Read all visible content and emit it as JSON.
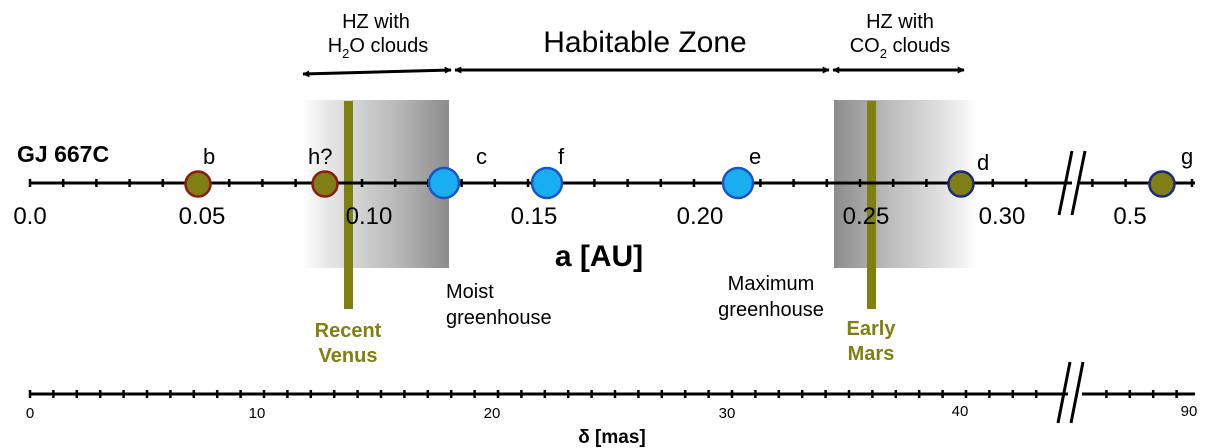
{
  "star_label": "GJ 667C",
  "zones": {
    "hz_h2o": {
      "line1": "HZ with",
      "line2_main": "H",
      "line2_sub": "2",
      "line2_rest": "O clouds"
    },
    "habitable": {
      "label": "Habitable Zone"
    },
    "hz_co2": {
      "line1": "HZ with",
      "line2_main": "CO",
      "line2_sub": "2",
      "line2_rest": " clouds"
    }
  },
  "au_axis": {
    "label": "a [AU]",
    "ticks": [
      "0.0",
      "0.05",
      "0.10",
      "0.15",
      "0.20",
      "0.25",
      "0.30",
      "0.5"
    ]
  },
  "planets": [
    {
      "name": "b",
      "a_au": 0.05,
      "type": "non-habitable"
    },
    {
      "name": "h?",
      "a_au": 0.089,
      "type": "non-habitable"
    },
    {
      "name": "c",
      "a_au": 0.125,
      "type": "habitable"
    },
    {
      "name": "f",
      "a_au": 0.156,
      "type": "habitable"
    },
    {
      "name": "e",
      "a_au": 0.213,
      "type": "habitable"
    },
    {
      "name": "d",
      "a_au": 0.276,
      "type": "outer"
    },
    {
      "name": "g",
      "a_au": 0.539,
      "type": "outer"
    }
  ],
  "limits": {
    "moist": {
      "line1": "Moist",
      "line2": "greenhouse"
    },
    "maximum": {
      "line1": "Maximum",
      "line2": "greenhouse"
    },
    "recent_venus": {
      "line1": "Recent",
      "line2": "Venus"
    },
    "early_mars": {
      "line1": "Early",
      "line2": "Mars"
    }
  },
  "mas_axis": {
    "label": "δ [mas]",
    "ticks": [
      "0",
      "10",
      "20",
      "30",
      "40",
      "90"
    ]
  },
  "colors": {
    "non_habitable_fill": "#7f7f15",
    "non_habitable_stroke": "#8b1c12",
    "habitable_fill": "#19aef0",
    "habitable_stroke": "#1a55c8",
    "outer_fill": "#7f7f15",
    "outer_stroke": "#1d2a7a",
    "epoch_bar": "#808010",
    "epoch_text": "#808010"
  }
}
